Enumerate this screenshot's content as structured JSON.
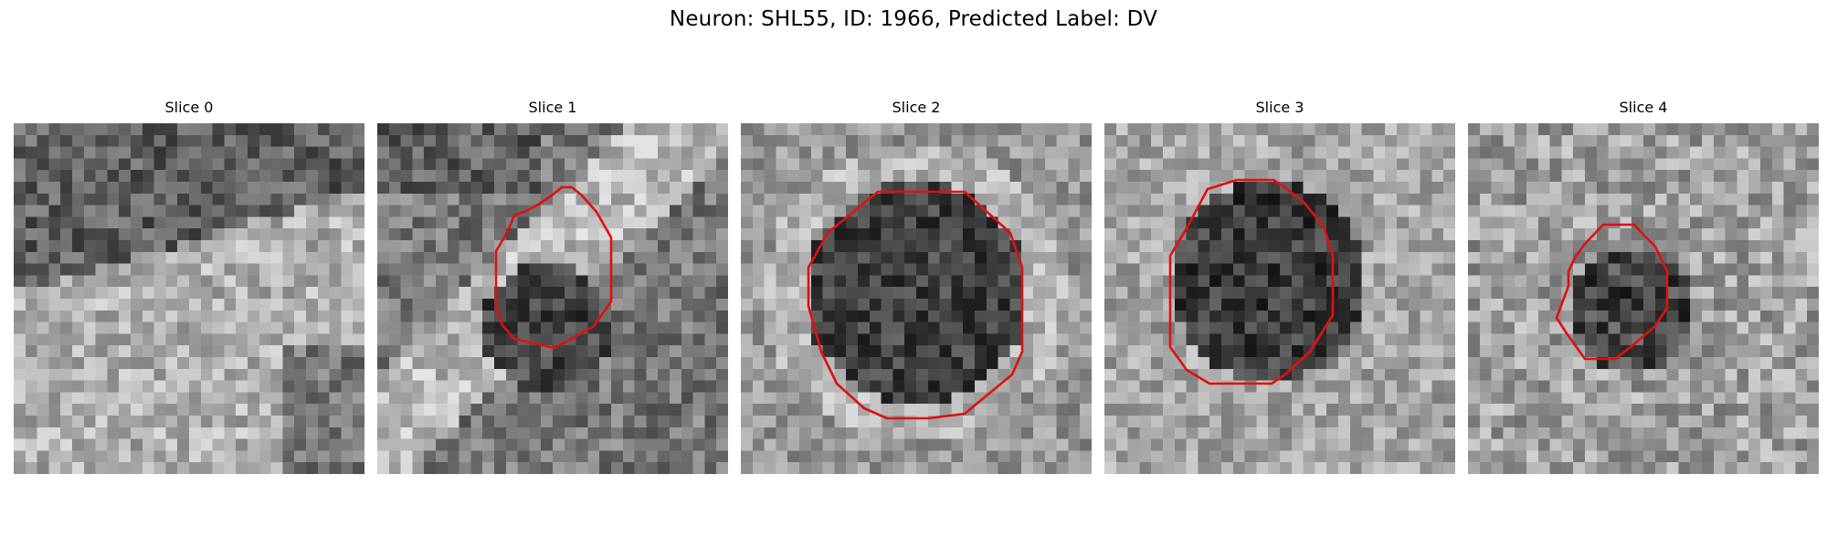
{
  "figure": {
    "title": "Neuron: SHL55, ID: 1966, Predicted Label: DV"
  },
  "panels": [
    {
      "title": "Slice 0",
      "has_contour": false
    },
    {
      "title": "Slice 1",
      "has_contour": true
    },
    {
      "title": "Slice 2",
      "has_contour": true
    },
    {
      "title": "Slice 3",
      "has_contour": true
    },
    {
      "title": "Slice 4",
      "has_contour": true
    }
  ],
  "colors": {
    "contour": "#e01010",
    "background": "#ffffff"
  }
}
